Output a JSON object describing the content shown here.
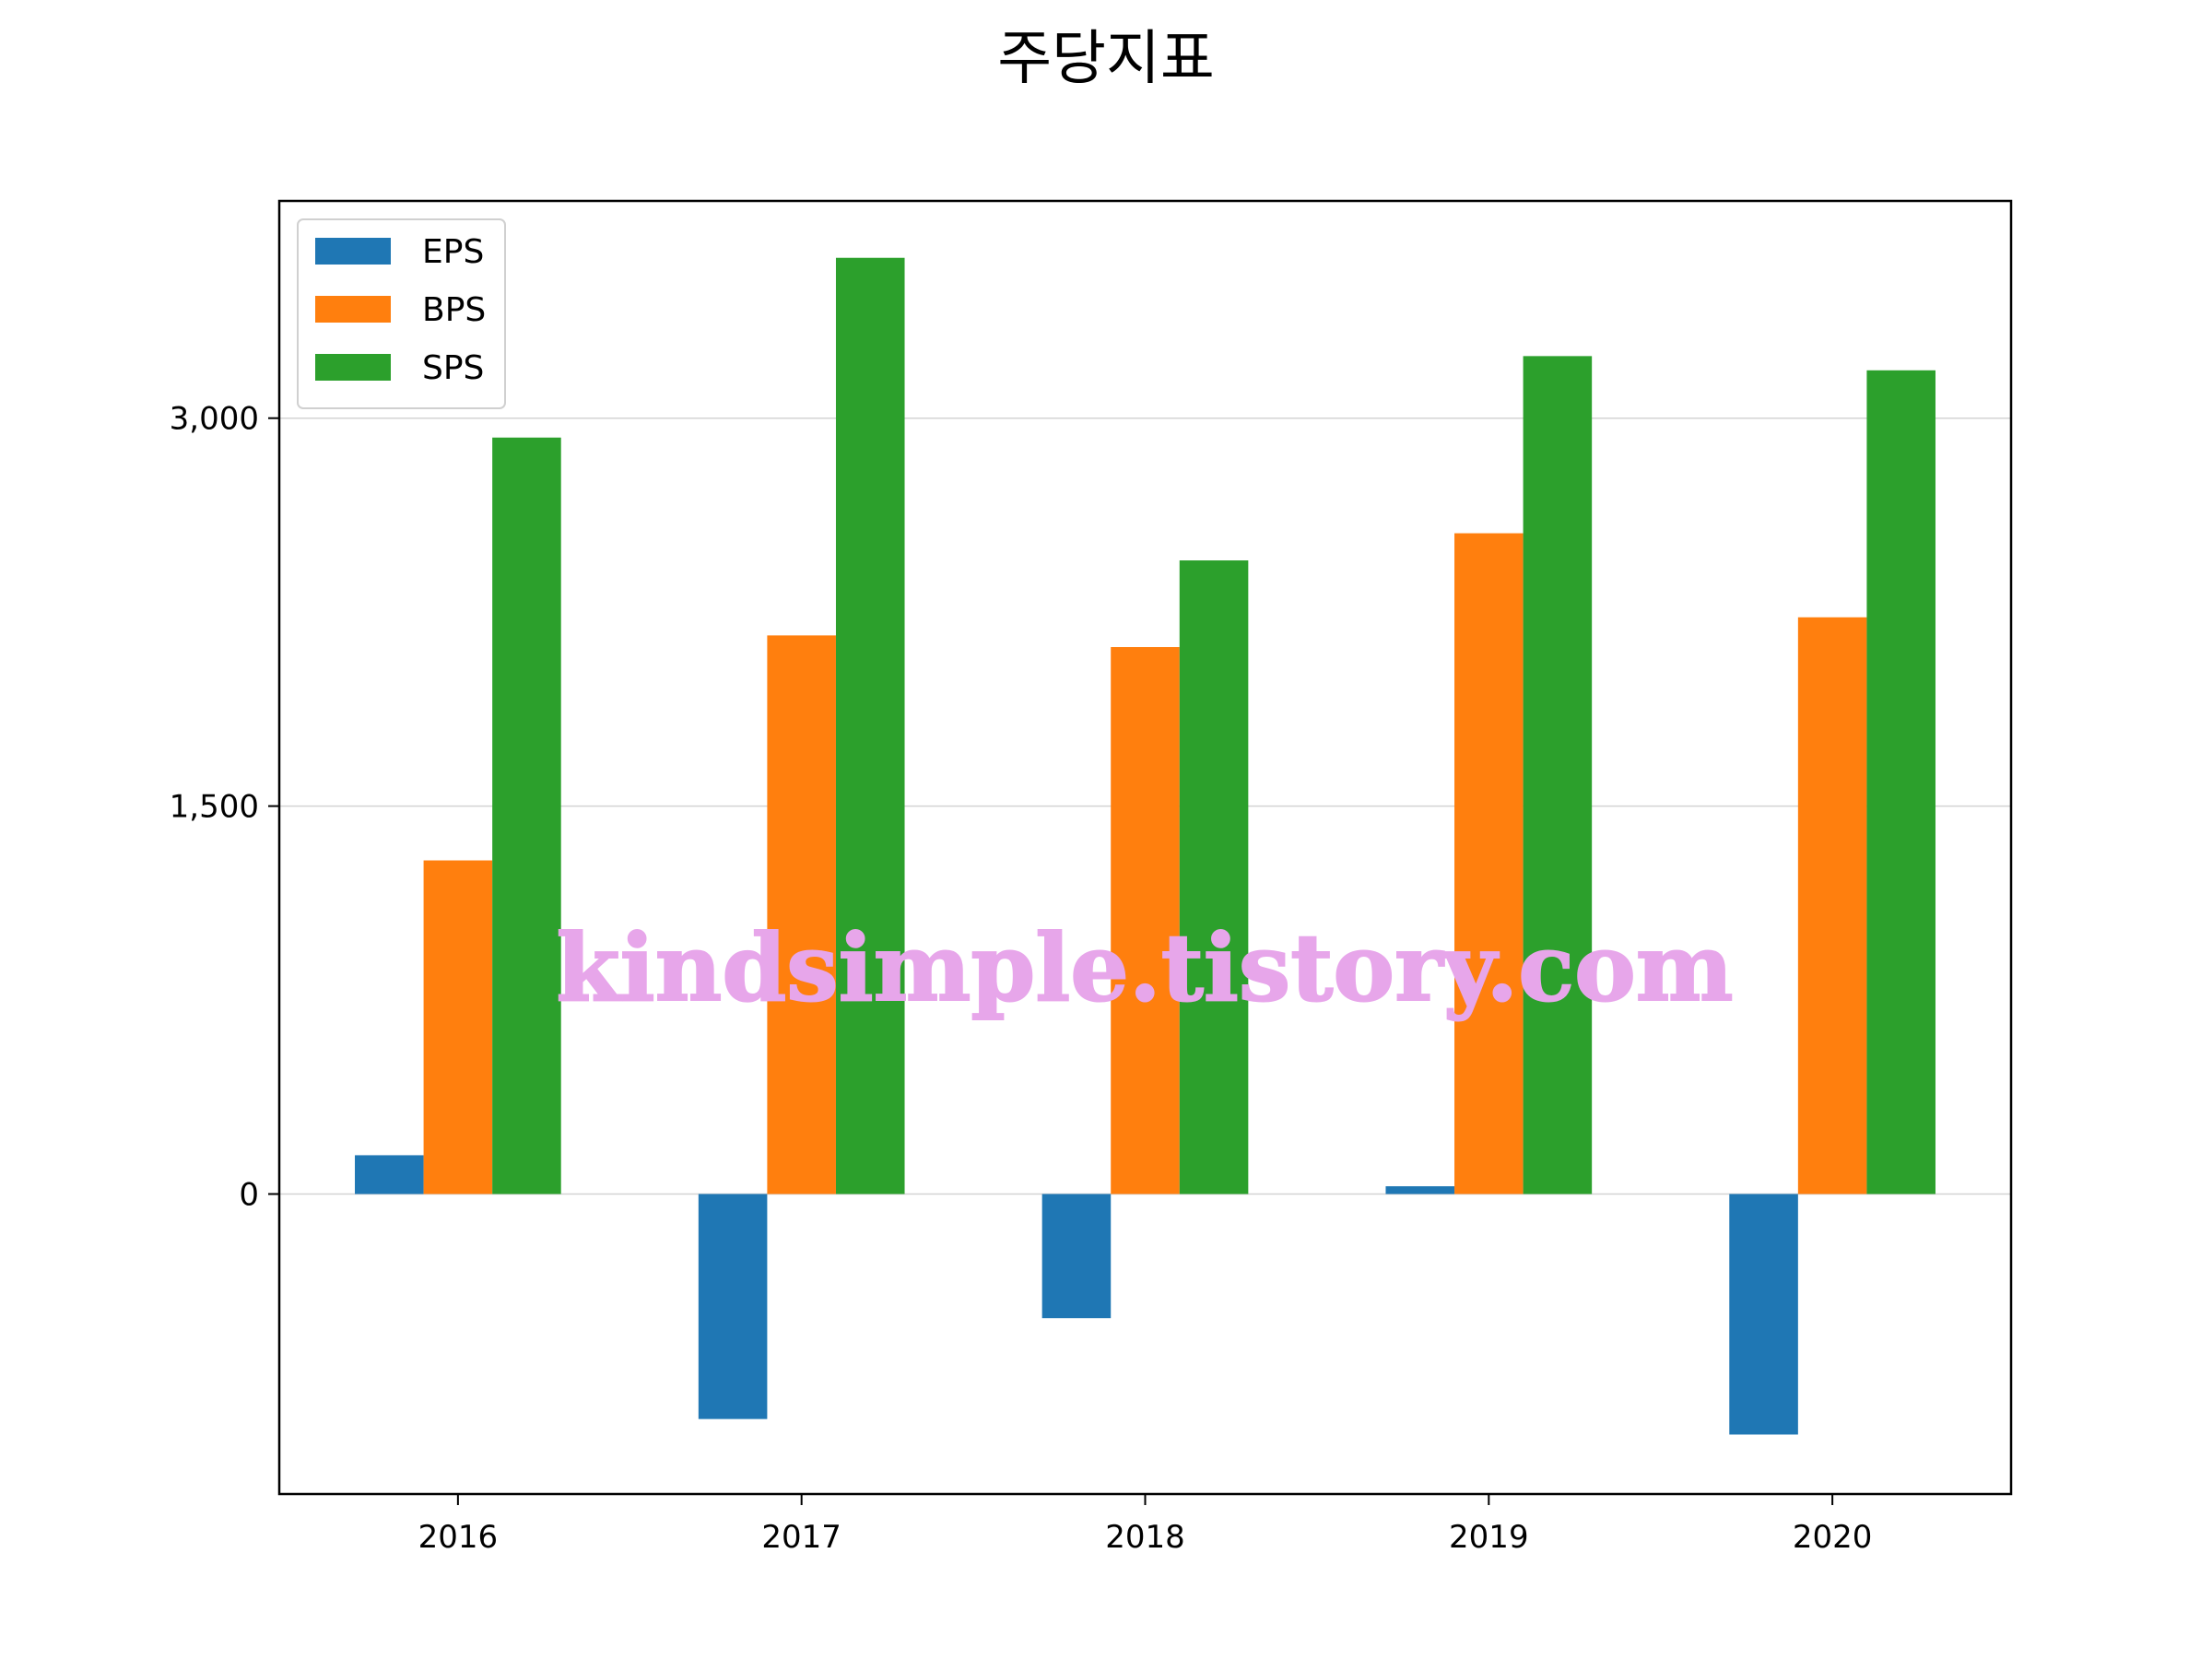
{
  "chart_data": {
    "type": "bar",
    "title": "주당지표",
    "categories": [
      "2016",
      "2017",
      "2018",
      "2019",
      "2020"
    ],
    "series": [
      {
        "name": "EPS",
        "color": "#1f77b4",
        "values": [
          150,
          -870,
          -480,
          30,
          -930
        ]
      },
      {
        "name": "BPS",
        "color": "#ff7f0e",
        "values": [
          1290,
          2160,
          2115,
          2555,
          2230
        ]
      },
      {
        "name": "SPS",
        "color": "#2ca02c",
        "values": [
          2925,
          3620,
          2450,
          3240,
          3185
        ]
      }
    ],
    "yticks": [
      0,
      1500,
      3000
    ],
    "ytick_labels": [
      "0",
      "1,500",
      "3,000"
    ],
    "ylim": [
      -1160,
      3840
    ],
    "grid": "horizontal",
    "legend_position": "upper-left",
    "xlabel": "",
    "ylabel": ""
  },
  "watermark": "kindsimple.tistory.com"
}
